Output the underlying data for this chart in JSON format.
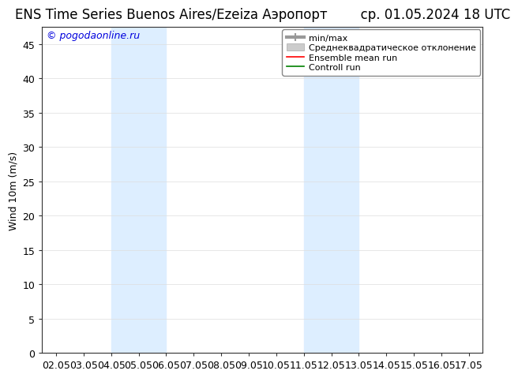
{
  "title": "ENS Time Series Buenos Aires/Ezeiza Аэропорт",
  "date_label": "ср. 01.05.2024 18 UTC",
  "ylabel": "Wind 10m (m/s)",
  "watermark": "© pogodaonline.ru",
  "ylim_min": 0,
  "ylim_max": 47.5,
  "yticks": [
    0,
    5,
    10,
    15,
    20,
    25,
    30,
    35,
    40,
    45
  ],
  "xtick_labels": [
    "02.05",
    "03.05",
    "04.05",
    "05.05",
    "06.05",
    "07.05",
    "08.05",
    "09.05",
    "10.05",
    "11.05",
    "12.05",
    "13.05",
    "14.05",
    "15.05",
    "16.05",
    "17.05"
  ],
  "shade_regions": [
    {
      "xstart": 2,
      "xend": 4,
      "color": "#ddeeff"
    },
    {
      "xstart": 9,
      "xend": 11,
      "color": "#ddeeff"
    }
  ],
  "legend_items": [
    {
      "label": "min/max",
      "color": "#aaaaaa"
    },
    {
      "label": "Среднеквадратическое отклонение",
      "color": "#cccccc"
    },
    {
      "label": "Ensemble mean run",
      "color": "#ff0000"
    },
    {
      "label": "Controll run",
      "color": "#008000"
    }
  ],
  "bg_color": "#ffffff",
  "plot_bg_color": "#ffffff",
  "grid_color": "#dddddd",
  "title_fontsize": 12,
  "axis_fontsize": 9,
  "watermark_color": "#0000dd",
  "watermark_fontsize": 9,
  "legend_fontsize": 8
}
